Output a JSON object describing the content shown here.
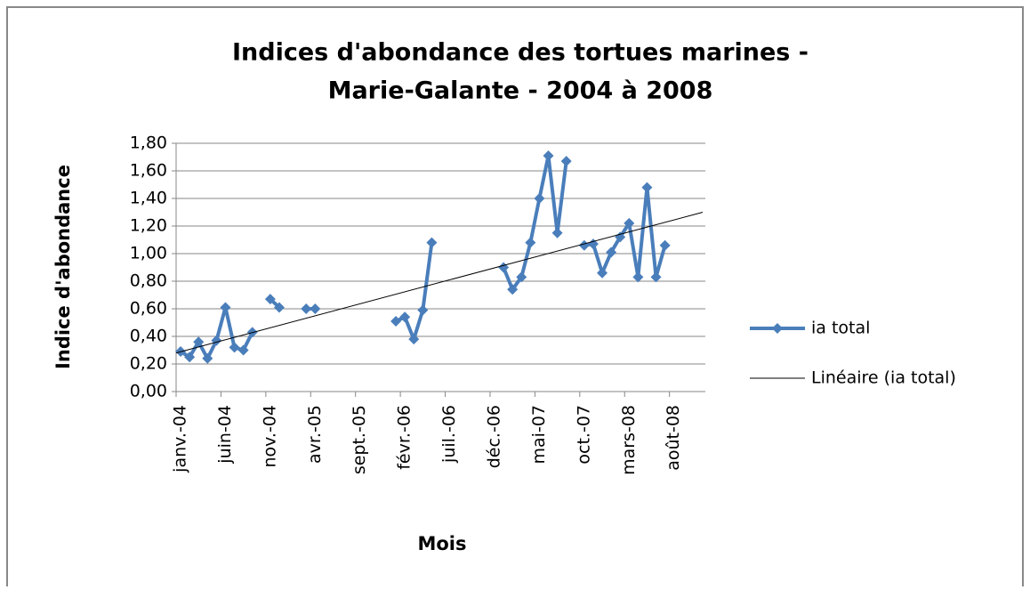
{
  "chart_data": {
    "type": "line",
    "title": [
      "Indices d'abondance  des tortues marines -",
      "Marie-Galante - 2004 à 2008"
    ],
    "x_label": "Mois",
    "y_label": "Indice d'abondance",
    "categories": [
      "janv.-04",
      null,
      null,
      null,
      null,
      "juin-04",
      null,
      null,
      null,
      null,
      "nov.-04",
      null,
      null,
      null,
      null,
      "avr.-05",
      null,
      null,
      null,
      null,
      "sept.-05",
      null,
      null,
      null,
      null,
      "févr.-06",
      null,
      null,
      null,
      null,
      "juil.-06",
      null,
      null,
      null,
      null,
      "déc.-06",
      null,
      null,
      null,
      null,
      "mai-07",
      null,
      null,
      null,
      null,
      "oct.-07",
      null,
      null,
      null,
      null,
      "mars-08",
      null,
      null,
      null,
      null,
      "août-08",
      null,
      null,
      null
    ],
    "series": [
      {
        "name": "ia total",
        "color": "#4a7ebb",
        "marker": "diamond",
        "values": [
          0.29,
          0.25,
          0.36,
          0.24,
          0.37,
          0.61,
          0.32,
          0.3,
          0.43,
          null,
          0.67,
          0.61,
          null,
          null,
          0.6,
          0.6,
          null,
          null,
          null,
          null,
          null,
          null,
          null,
          null,
          0.51,
          0.54,
          0.38,
          0.59,
          1.08,
          null,
          null,
          null,
          null,
          null,
          null,
          null,
          0.9,
          0.74,
          0.83,
          1.08,
          1.4,
          1.71,
          1.15,
          1.67,
          null,
          1.06,
          1.07,
          0.86,
          1.01,
          1.12,
          1.22,
          0.83,
          1.48,
          0.83,
          1.06,
          null,
          null,
          null,
          null
        ]
      }
    ],
    "trendline": {
      "name": "Linéaire (ia total)",
      "color": "#000000",
      "values": [
        0.28,
        1.3
      ]
    },
    "ylim": [
      0,
      1.8
    ],
    "yticks": [
      {
        "value": 0,
        "label": "0,00"
      },
      {
        "value": 0.2,
        "label": "0,20"
      },
      {
        "value": 0.4,
        "label": "0,40"
      },
      {
        "value": 0.6,
        "label": "0,60"
      },
      {
        "value": 0.8,
        "label": "0,80"
      },
      {
        "value": 1.0,
        "label": "1,00"
      },
      {
        "value": 1.2,
        "label": "1,20"
      },
      {
        "value": 1.4,
        "label": "1,40"
      },
      {
        "value": 1.6,
        "label": "1,60"
      },
      {
        "value": 1.8,
        "label": "1,80"
      }
    ],
    "grid": true,
    "legend": "right"
  }
}
